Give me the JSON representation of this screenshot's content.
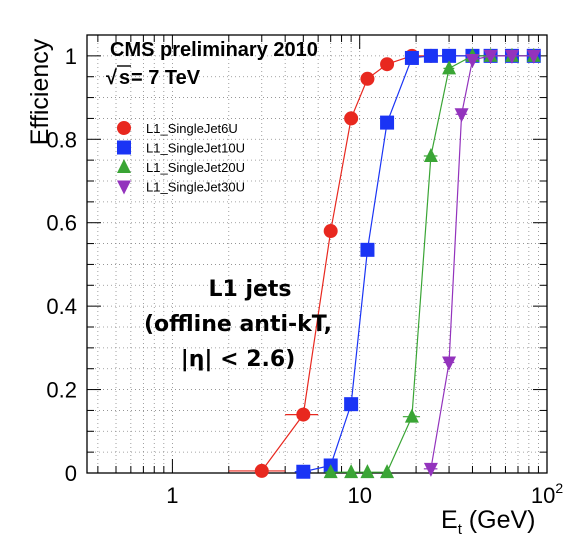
{
  "chart_data": {
    "type": "scatter",
    "xlabel": "E",
    "xlabel_sub": "t",
    "xlabel_unit": " (GeV)",
    "ylabel": "Efficiency",
    "xscale": "log",
    "xlim": [
      0.35,
      100
    ],
    "ylim": [
      0,
      1.05
    ],
    "grid": true,
    "legend_position": "top-left",
    "x_tick_labels": [
      {
        "value": 1,
        "label": "1"
      },
      {
        "value": 10,
        "label": "10"
      },
      {
        "value": 100,
        "label": "10",
        "exponent": "2"
      }
    ],
    "y_tick_labels": [
      {
        "value": 0,
        "label": "0"
      },
      {
        "value": 0.2,
        "label": "0.2"
      },
      {
        "value": 0.4,
        "label": "0.4"
      },
      {
        "value": 0.6,
        "label": "0.6"
      },
      {
        "value": 0.8,
        "label": "0.8"
      },
      {
        "value": 1,
        "label": "1"
      }
    ],
    "annotations": {
      "experiment": "CMS preliminary 2010",
      "energy_sqrt": "s",
      "energy_rest": " = 7 TeV",
      "center_lines": [
        "L1 jets",
        "(offline anti-kT,",
        "|η| < 2.6)"
      ]
    },
    "series": [
      {
        "name": "L1_SingleJet6U",
        "color": "#e8281f",
        "marker": "circle",
        "points": [
          {
            "x": 3,
            "y": 0.005,
            "x_lo": 2,
            "x_hi": 4
          },
          {
            "x": 5,
            "y": 0.14,
            "x_lo": 4,
            "x_hi": 6
          },
          {
            "x": 7,
            "y": 0.58,
            "x_lo": 6.5,
            "x_hi": 7.5
          },
          {
            "x": 9,
            "y": 0.85,
            "x_lo": 8.5,
            "x_hi": 9.5
          },
          {
            "x": 11,
            "y": 0.945,
            "x_lo": 10.5,
            "x_hi": 11.5
          },
          {
            "x": 14,
            "y": 0.98
          },
          {
            "x": 19,
            "y": 1.0
          },
          {
            "x": 24,
            "y": 1.0
          },
          {
            "x": 30,
            "y": 1.0
          },
          {
            "x": 40,
            "y": 1.0
          },
          {
            "x": 50,
            "y": 1.0
          },
          {
            "x": 65,
            "y": 1.0
          },
          {
            "x": 85,
            "y": 1.0
          }
        ]
      },
      {
        "name": "L1_SingleJet10U",
        "color": "#1a34f5",
        "marker": "square",
        "points": [
          {
            "x": 5,
            "y": 0.003,
            "x_lo": 4.5,
            "x_hi": 5.5
          },
          {
            "x": 7,
            "y": 0.018,
            "x_lo": 6.5,
            "x_hi": 7.5
          },
          {
            "x": 9,
            "y": 0.165,
            "x_lo": 8.5,
            "x_hi": 9.5
          },
          {
            "x": 11,
            "y": 0.535,
            "x_lo": 10.5,
            "x_hi": 11.5
          },
          {
            "x": 14,
            "y": 0.84,
            "x_lo": 13,
            "x_hi": 15
          },
          {
            "x": 19,
            "y": 0.995
          },
          {
            "x": 24,
            "y": 1.0
          },
          {
            "x": 30,
            "y": 1.0
          },
          {
            "x": 40,
            "y": 1.0
          },
          {
            "x": 50,
            "y": 1.0
          },
          {
            "x": 65,
            "y": 1.0
          },
          {
            "x": 85,
            "y": 1.0
          }
        ]
      },
      {
        "name": "L1_SingleJet20U",
        "color": "#3aa535",
        "marker": "triangle-up",
        "points": [
          {
            "x": 7,
            "y": 0.002,
            "x_lo": 6.5,
            "x_hi": 7.5
          },
          {
            "x": 9,
            "y": 0.002,
            "x_lo": 8.5,
            "x_hi": 9.5
          },
          {
            "x": 11,
            "y": 0.002,
            "x_lo": 10.5,
            "x_hi": 11.5
          },
          {
            "x": 14,
            "y": 0.002
          },
          {
            "x": 19,
            "y": 0.135,
            "x_lo": 17,
            "x_hi": 21
          },
          {
            "x": 24,
            "y": 0.76,
            "x_lo": 22,
            "x_hi": 26
          },
          {
            "x": 30,
            "y": 0.97,
            "x_lo": 28,
            "x_hi": 32
          },
          {
            "x": 40,
            "y": 1.0
          },
          {
            "x": 50,
            "y": 1.0
          },
          {
            "x": 65,
            "y": 1.0
          },
          {
            "x": 85,
            "y": 1.0
          }
        ]
      },
      {
        "name": "L1_SingleJet30U",
        "color": "#9333bd",
        "marker": "triangle-down",
        "points": [
          {
            "x": 24,
            "y": 0.01,
            "x_lo": 22,
            "x_hi": 26
          },
          {
            "x": 30,
            "y": 0.265,
            "x_lo": 28,
            "x_hi": 32
          },
          {
            "x": 35,
            "y": 0.86,
            "x_lo": 32.5,
            "x_hi": 37.5
          },
          {
            "x": 40,
            "y": 0.99
          },
          {
            "x": 50,
            "y": 1.0
          },
          {
            "x": 65,
            "y": 1.0
          },
          {
            "x": 85,
            "y": 1.0
          }
        ]
      }
    ]
  }
}
